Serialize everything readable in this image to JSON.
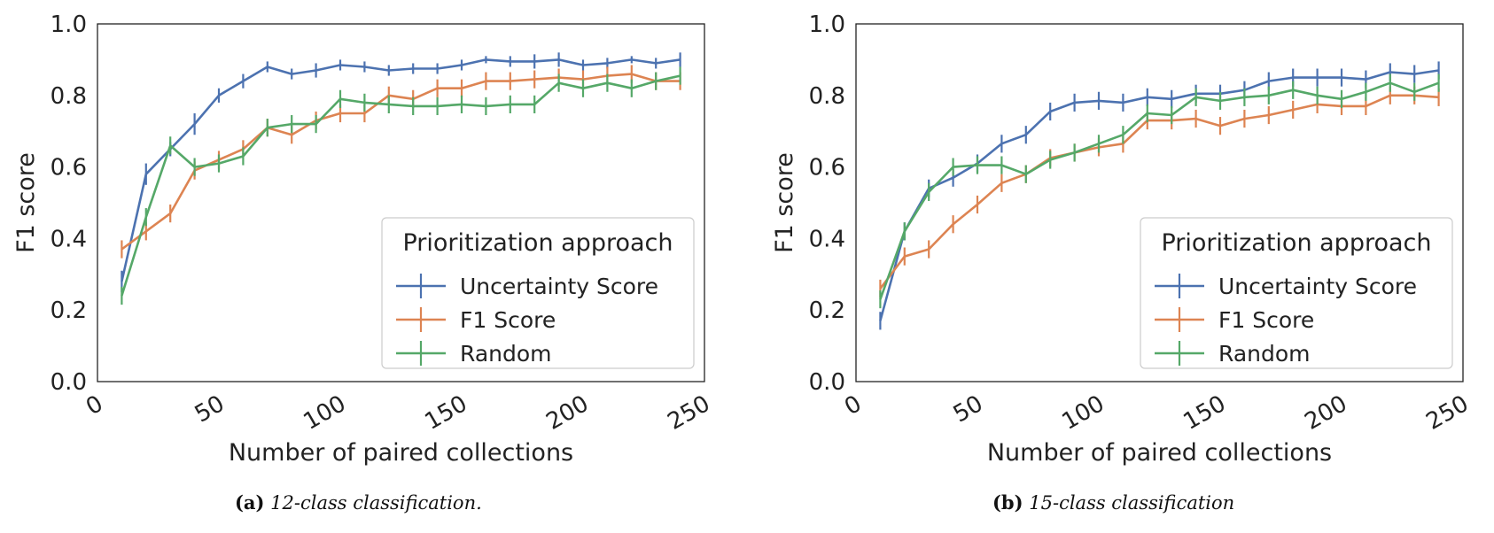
{
  "chart_data": [
    {
      "type": "line",
      "panel": "a",
      "xlabel": "Number of paired collections",
      "ylabel": "F1 score",
      "xlim": [
        0,
        250
      ],
      "ylim": [
        0,
        1.0
      ],
      "xticks": [
        "0",
        "50",
        "100",
        "150",
        "200",
        "250"
      ],
      "yticks": [
        "0.0",
        "0.2",
        "0.4",
        "0.6",
        "0.8",
        "1.0"
      ],
      "grid": false,
      "legend": {
        "title": "Prioritization approach",
        "position": "lower-right"
      },
      "x": [
        10,
        20,
        30,
        40,
        50,
        60,
        70,
        80,
        90,
        100,
        110,
        120,
        130,
        140,
        150,
        160,
        170,
        180,
        190,
        200,
        210,
        220,
        230,
        240
      ],
      "series": [
        {
          "name": "Uncertainty Score",
          "color": "#4c72b0",
          "values": [
            0.28,
            0.58,
            0.65,
            0.72,
            0.8,
            0.84,
            0.88,
            0.86,
            0.87,
            0.885,
            0.88,
            0.87,
            0.875,
            0.875,
            0.885,
            0.9,
            0.895,
            0.895,
            0.9,
            0.885,
            0.89,
            0.9,
            0.89,
            0.9
          ],
          "errors": [
            0.03,
            0.03,
            0.02,
            0.03,
            0.02,
            0.02,
            0.015,
            0.015,
            0.02,
            0.015,
            0.015,
            0.015,
            0.015,
            0.015,
            0.015,
            0.01,
            0.015,
            0.02,
            0.02,
            0.015,
            0.015,
            0.01,
            0.015,
            0.02
          ]
        },
        {
          "name": "F1 Score",
          "color": "#dd8452",
          "values": [
            0.37,
            0.42,
            0.47,
            0.59,
            0.62,
            0.65,
            0.71,
            0.69,
            0.73,
            0.75,
            0.75,
            0.8,
            0.79,
            0.82,
            0.82,
            0.84,
            0.84,
            0.845,
            0.85,
            0.845,
            0.855,
            0.86,
            0.84,
            0.84
          ]
        },
        {
          "name": "Random",
          "color": "#55a868",
          "values": [
            0.24,
            0.46,
            0.66,
            0.6,
            0.61,
            0.63,
            0.71,
            0.72,
            0.72,
            0.79,
            0.78,
            0.775,
            0.77,
            0.77,
            0.775,
            0.77,
            0.775,
            0.775,
            0.835,
            0.82,
            0.835,
            0.82,
            0.84,
            0.855
          ]
        }
      ],
      "caption_tag": "(a)",
      "caption_text": "12-class classification."
    },
    {
      "type": "line",
      "panel": "b",
      "xlabel": "Number of paired collections",
      "ylabel": "F1 score",
      "xlim": [
        0,
        250
      ],
      "ylim": [
        0,
        1.0
      ],
      "xticks": [
        "0",
        "50",
        "100",
        "150",
        "200",
        "250"
      ],
      "yticks": [
        "0.0",
        "0.2",
        "0.4",
        "0.6",
        "0.8",
        "1.0"
      ],
      "grid": false,
      "legend": {
        "title": "Prioritization approach",
        "position": "lower-right"
      },
      "x": [
        10,
        20,
        30,
        40,
        50,
        60,
        70,
        80,
        90,
        100,
        110,
        120,
        130,
        140,
        150,
        160,
        170,
        180,
        190,
        200,
        210,
        220,
        230,
        240
      ],
      "series": [
        {
          "name": "Uncertainty Score",
          "color": "#4c72b0",
          "values": [
            0.17,
            0.42,
            0.54,
            0.57,
            0.61,
            0.665,
            0.69,
            0.755,
            0.78,
            0.785,
            0.78,
            0.795,
            0.79,
            0.805,
            0.805,
            0.815,
            0.84,
            0.85,
            0.85,
            0.85,
            0.845,
            0.865,
            0.86,
            0.87
          ]
        },
        {
          "name": "F1 Score",
          "color": "#dd8452",
          "values": [
            0.26,
            0.35,
            0.37,
            0.44,
            0.495,
            0.555,
            0.58,
            0.625,
            0.64,
            0.655,
            0.665,
            0.73,
            0.73,
            0.735,
            0.715,
            0.735,
            0.745,
            0.76,
            0.775,
            0.77,
            0.77,
            0.8,
            0.8,
            0.795
          ]
        },
        {
          "name": "Random",
          "color": "#55a868",
          "values": [
            0.23,
            0.42,
            0.53,
            0.6,
            0.605,
            0.605,
            0.58,
            0.62,
            0.64,
            0.665,
            0.69,
            0.75,
            0.745,
            0.795,
            0.785,
            0.795,
            0.8,
            0.815,
            0.8,
            0.79,
            0.81,
            0.835,
            0.81,
            0.835
          ]
        }
      ],
      "caption_tag": "(b)",
      "caption_text": "15-class classification"
    }
  ]
}
